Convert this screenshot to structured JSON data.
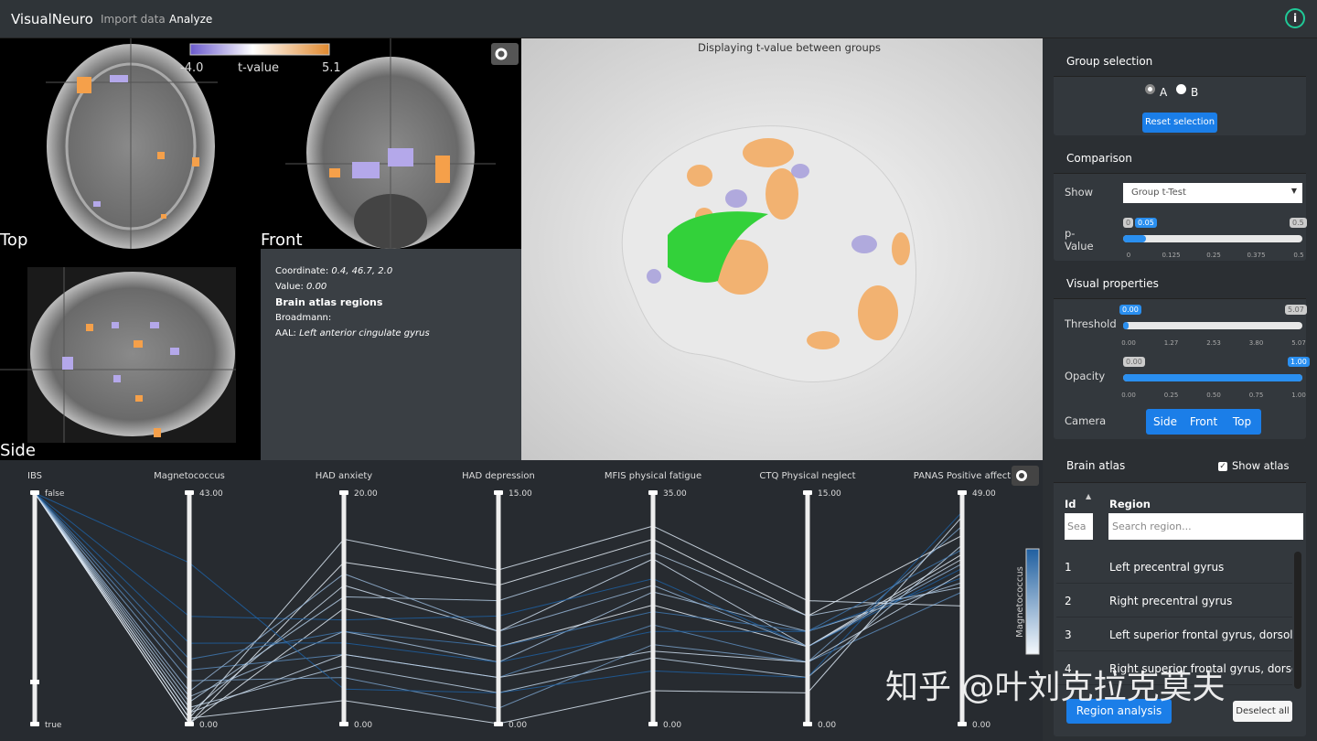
{
  "nav": {
    "brand": "VisualNeuro",
    "links": [
      "Import data",
      "Analyze"
    ],
    "info": "i"
  },
  "slices": {
    "colorbar": {
      "min": "-4.0",
      "label": "t-value",
      "max": "5.1"
    },
    "views": [
      "Top",
      "Front",
      "Side"
    ]
  },
  "info": {
    "coordinate_label": "Coordinate:",
    "coordinate": "0.4, 46.7, 2.0",
    "value_label": "Value:",
    "value": "0.00",
    "atlas_title": "Brain atlas regions",
    "broadmann": "Broadmann:",
    "aal_label": "AAL:",
    "aal": "Left anterior cingulate gyrus"
  },
  "view3d": {
    "caption": "Displaying t-value between groups"
  },
  "panel": {
    "group": {
      "title": "Group selection",
      "options": [
        "A",
        "B"
      ],
      "button": "Reset selection"
    },
    "comparison": {
      "title": "Comparison",
      "show_label": "Show",
      "show_value": "Group t-Test",
      "pvalue_label": "p-Value",
      "pvalue_min": "0",
      "pvalue_handle": "0.05",
      "pvalue_max": "0.5",
      "pvalue_ticks": [
        "0",
        "0.125",
        "0.25",
        "0.375",
        "0.5"
      ]
    },
    "visual": {
      "title": "Visual properties",
      "threshold_label": "Threshold",
      "threshold_min": "0.00",
      "threshold_max": "5.07",
      "threshold_ticks": [
        "0.00",
        "1.27",
        "2.53",
        "3.80",
        "5.07"
      ],
      "opacity_label": "Opacity",
      "opacity_min": "0.00",
      "opacity_max": "1.00",
      "opacity_ticks": [
        "0.00",
        "0.25",
        "0.50",
        "0.75",
        "1.00"
      ],
      "camera_label": "Camera",
      "camera_buttons": [
        "Side",
        "Front",
        "Top"
      ]
    },
    "atlas": {
      "title": "Brain atlas",
      "show_atlas": "Show atlas",
      "columns": [
        "Id",
        "Region"
      ],
      "search_placeholders": [
        "Sea",
        "Search region..."
      ],
      "rows": [
        [
          "1",
          "Left precentral gyrus"
        ],
        [
          "2",
          "Right precentral gyrus"
        ],
        [
          "3",
          "Left superior frontal gyrus, dorsolateral"
        ],
        [
          "4",
          "Right superior frontal gyrus, dorsolateral"
        ]
      ],
      "buttons": [
        "Region analysis",
        "Deselect all"
      ]
    }
  },
  "parallel": {
    "color_legend": "Magnetococcus",
    "axes": [
      {
        "name": "IBS",
        "top": {
          "value": 0,
          "label": "false"
        },
        "bottom": {
          "value": 1,
          "label": "true"
        }
      },
      {
        "name": "Magnetococcus",
        "top": {
          "value": 43,
          "label": "43.00"
        },
        "bottom": {
          "value": 0,
          "label": "0.00"
        }
      },
      {
        "name": "HAD anxiety",
        "top": {
          "value": 20,
          "label": "20.00"
        },
        "bottom": {
          "value": 0,
          "label": "0.00"
        }
      },
      {
        "name": "HAD depression",
        "top": {
          "value": 15,
          "label": "15.00"
        },
        "bottom": {
          "value": 0,
          "label": "0.00"
        }
      },
      {
        "name": "MFIS physical fatigue",
        "top": {
          "value": 35,
          "label": "35.00"
        },
        "bottom": {
          "value": 0,
          "label": "0.00"
        }
      },
      {
        "name": "CTQ Physical neglect",
        "top": {
          "value": 15,
          "label": "15.00"
        },
        "bottom": {
          "value": 0,
          "label": "0.00"
        }
      },
      {
        "name": "PANAS Positive affect",
        "top": {
          "value": 49,
          "label": "49.00"
        },
        "bottom": {
          "value": 0,
          "label": "0.00"
        }
      }
    ],
    "records": [
      [
        0,
        5,
        8,
        4,
        20,
        6,
        30
      ],
      [
        0,
        2,
        12,
        6,
        25,
        5,
        35
      ],
      [
        0,
        10,
        6,
        3,
        15,
        4,
        28
      ],
      [
        0,
        0,
        14,
        9,
        28,
        7,
        40
      ],
      [
        0,
        3,
        5,
        2,
        10,
        3,
        38
      ],
      [
        0,
        20,
        9,
        7,
        22,
        5,
        33
      ],
      [
        0,
        1,
        16,
        10,
        30,
        8,
        25
      ],
      [
        0,
        8,
        4,
        1,
        12,
        4,
        42
      ],
      [
        0,
        0,
        10,
        5,
        18,
        5,
        36
      ],
      [
        0,
        15,
        7,
        4,
        14,
        6,
        31
      ],
      [
        0,
        4,
        11,
        8,
        26,
        7,
        29
      ],
      [
        0,
        30,
        3,
        2,
        8,
        3,
        45
      ],
      [
        0,
        6,
        13,
        6,
        21,
        5,
        34
      ],
      [
        0,
        1,
        2,
        0,
        5,
        2,
        44
      ],
      [
        0,
        12,
        8,
        5,
        17,
        6,
        37
      ],
      [
        0,
        2,
        6,
        3,
        11,
        4,
        32
      ]
    ]
  },
  "watermark": "知乎 @叶刘克拉克莫夫"
}
